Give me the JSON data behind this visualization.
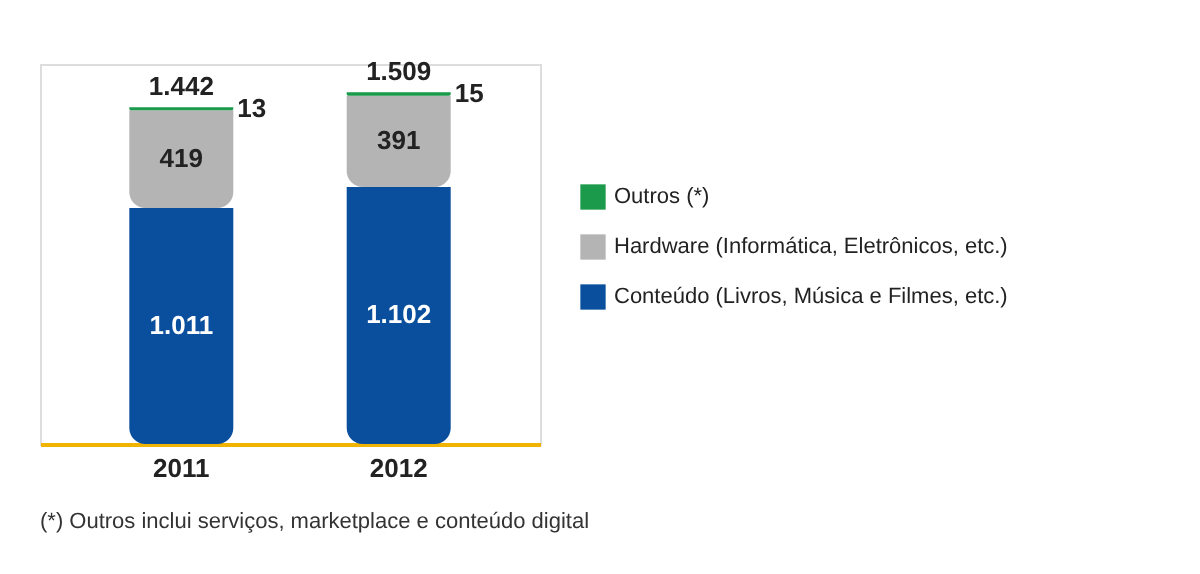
{
  "chart_data": {
    "type": "bar",
    "stacked": true,
    "categories": [
      "2011",
      "2012"
    ],
    "series": [
      {
        "name": "Conteúdo (Livros, Música e Filmes, etc.)",
        "color": "#0a4f9e",
        "values": [
          1011,
          1102
        ],
        "value_labels": [
          "1.011",
          "1.102"
        ]
      },
      {
        "name": "Hardware (Informática, Eletrônicos, etc.)",
        "color": "#b4b4b4",
        "values": [
          419,
          391
        ],
        "value_labels": [
          "419",
          "391"
        ]
      },
      {
        "name": "Outros (*)",
        "color": "#1a9a4a",
        "values": [
          13,
          15
        ],
        "value_labels": [
          "13",
          "15"
        ]
      }
    ],
    "totals": [
      "1.442",
      "1.509"
    ],
    "legend": "right",
    "grid": false,
    "annotations": [
      "(*) Outros inclui serviços, marketplace e conteúdo digital"
    ]
  }
}
